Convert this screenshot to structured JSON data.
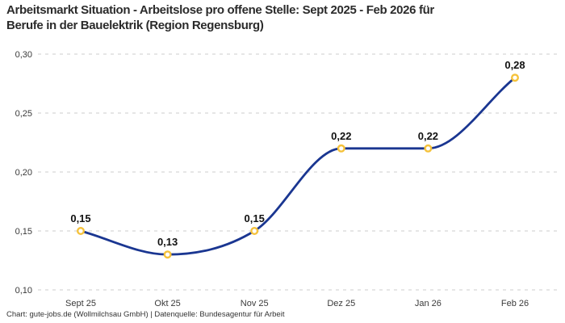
{
  "title": {
    "line1": "Arbeitsmarkt Situation - Arbeitslose pro offene Stelle: Sept 2025 - Feb 2026 für",
    "line2": "Berufe in der Bauelektrik (Region Regensburg)"
  },
  "footer": {
    "text": "Chart: gute-jobs.de (Wollmilchsau GmbH) | Datenquelle: Bundesagentur für Arbeit"
  },
  "chart_data": {
    "type": "line",
    "title": "Arbeitsmarkt Situation - Arbeitslose pro offene Stelle: Sept 2025 - Feb 2026 für Berufe in der Bauelektrik (Region Regensburg)",
    "categories": [
      "Sept 25",
      "Okt 25",
      "Nov 25",
      "Dez 25",
      "Jan 26",
      "Feb 26"
    ],
    "values": [
      0.15,
      0.13,
      0.15,
      0.22,
      0.22,
      0.28
    ],
    "point_labels": [
      "0,15",
      "0,13",
      "0,15",
      "0,22",
      "0,22",
      "0,28"
    ],
    "xlabel": "",
    "ylabel": "",
    "ylim": [
      0.1,
      0.3
    ],
    "yticks": [
      0.1,
      0.15,
      0.2,
      0.25,
      0.3
    ],
    "ytick_labels": [
      "0,10",
      "0,15",
      "0,20",
      "0,25",
      "0,30"
    ],
    "legend": "none",
    "grid": "horizontal-dashed",
    "curve": "monotone",
    "colors": {
      "line": "#1a3691",
      "marker_ring": "#f5c23b",
      "marker_fill": "#ffffff",
      "grid": "#cccccc",
      "axis_text": "#3a3a3a",
      "point_label_text": "#111111",
      "title_text": "#2b2b2b"
    }
  }
}
